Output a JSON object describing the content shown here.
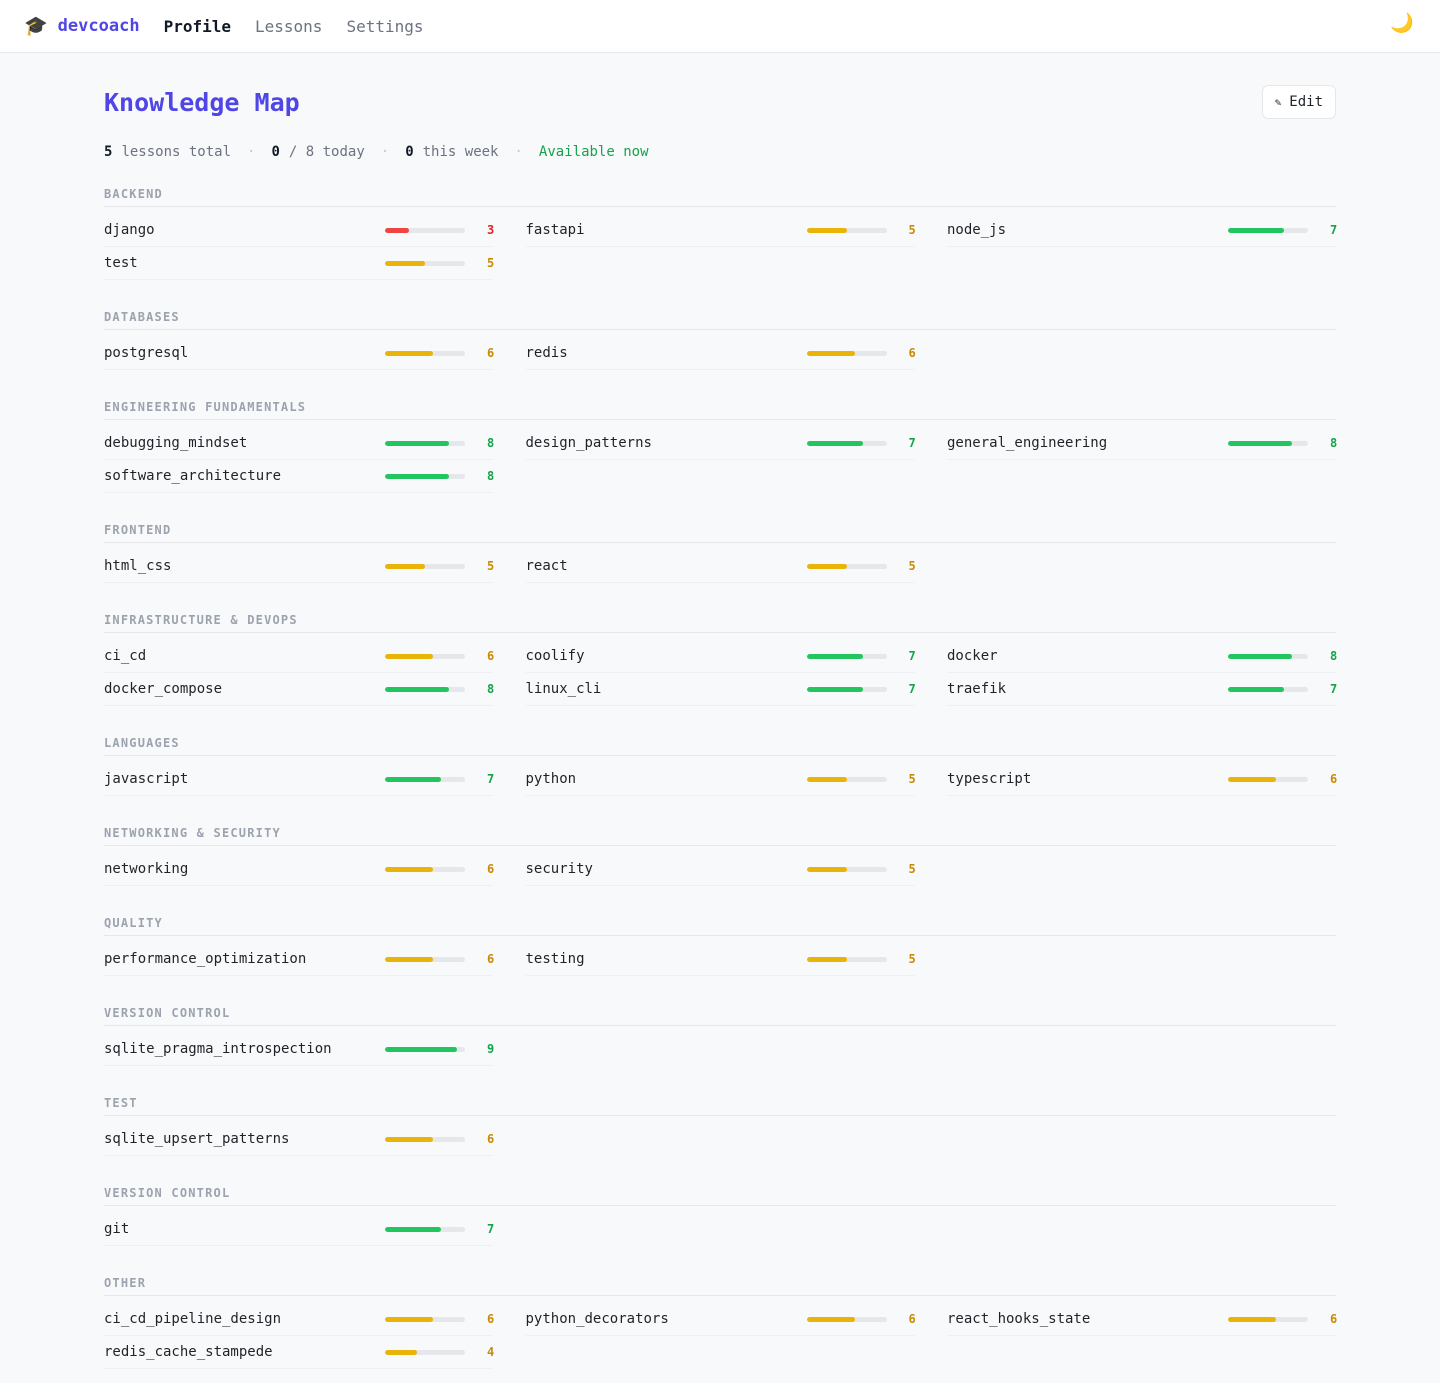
{
  "topbar": {
    "brand_icon": "🎓",
    "brand_name": "devcoach",
    "nav": [
      {
        "label": "Profile",
        "active": true
      },
      {
        "label": "Lessons",
        "active": false
      },
      {
        "label": "Settings",
        "active": false
      }
    ],
    "theme_icon": "🌙"
  },
  "page": {
    "title": "Knowledge Map",
    "edit_icon": "✎",
    "edit_label": "Edit"
  },
  "stats": {
    "lessons_count": "5",
    "lessons_label": "lessons total",
    "today_count": "0",
    "today_label": "/ 8 today",
    "week_count": "0",
    "week_label": "this week",
    "availability": "Available now",
    "separator": "·"
  },
  "colors": {
    "accent": "#4f46e5",
    "low": "#ef4444",
    "mid": "#eab308",
    "high": "#22c55e",
    "available": "#16a34a"
  },
  "max_score": 10,
  "sections": [
    {
      "title": "BACKEND",
      "skills": [
        {
          "name": "django",
          "score": 3
        },
        {
          "name": "fastapi",
          "score": 5
        },
        {
          "name": "node_js",
          "score": 7
        },
        {
          "name": "test",
          "score": 5
        }
      ]
    },
    {
      "title": "DATABASES",
      "skills": [
        {
          "name": "postgresql",
          "score": 6
        },
        {
          "name": "redis",
          "score": 6
        }
      ]
    },
    {
      "title": "ENGINEERING FUNDAMENTALS",
      "skills": [
        {
          "name": "debugging_mindset",
          "score": 8
        },
        {
          "name": "design_patterns",
          "score": 7
        },
        {
          "name": "general_engineering",
          "score": 8
        },
        {
          "name": "software_architecture",
          "score": 8
        }
      ]
    },
    {
      "title": "FRONTEND",
      "skills": [
        {
          "name": "html_css",
          "score": 5
        },
        {
          "name": "react",
          "score": 5
        }
      ]
    },
    {
      "title": "INFRASTRUCTURE & DEVOPS",
      "skills": [
        {
          "name": "ci_cd",
          "score": 6
        },
        {
          "name": "coolify",
          "score": 7
        },
        {
          "name": "docker",
          "score": 8
        },
        {
          "name": "docker_compose",
          "score": 8
        },
        {
          "name": "linux_cli",
          "score": 7
        },
        {
          "name": "traefik",
          "score": 7
        }
      ]
    },
    {
      "title": "LANGUAGES",
      "skills": [
        {
          "name": "javascript",
          "score": 7
        },
        {
          "name": "python",
          "score": 5
        },
        {
          "name": "typescript",
          "score": 6
        }
      ]
    },
    {
      "title": "NETWORKING & SECURITY",
      "skills": [
        {
          "name": "networking",
          "score": 6
        },
        {
          "name": "security",
          "score": 5
        }
      ]
    },
    {
      "title": "QUALITY",
      "skills": [
        {
          "name": "performance_optimization",
          "score": 6
        },
        {
          "name": "testing",
          "score": 5
        }
      ]
    },
    {
      "title": "VERSION CONTROL",
      "skills": [
        {
          "name": "sqlite_pragma_introspection",
          "score": 9
        }
      ]
    },
    {
      "title": "TEST",
      "skills": [
        {
          "name": "sqlite_upsert_patterns",
          "score": 6
        }
      ]
    },
    {
      "title": "VERSION CONTROL",
      "skills": [
        {
          "name": "git",
          "score": 7
        }
      ]
    },
    {
      "title": "OTHER",
      "skills": [
        {
          "name": "ci_cd_pipeline_design",
          "score": 6
        },
        {
          "name": "python_decorators",
          "score": 6
        },
        {
          "name": "react_hooks_state",
          "score": 6
        },
        {
          "name": "redis_cache_stampede",
          "score": 4
        }
      ]
    }
  ]
}
